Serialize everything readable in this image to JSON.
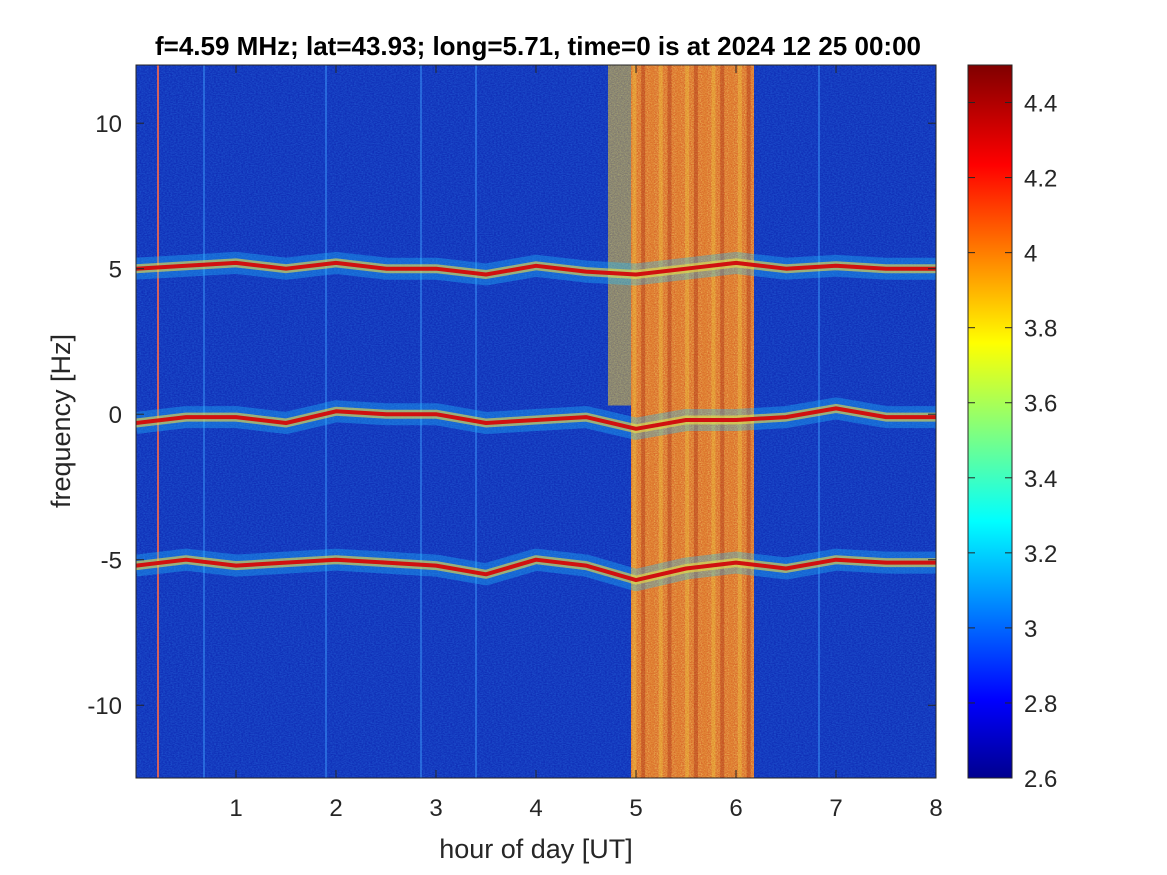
{
  "chart_data": {
    "type": "heatmap",
    "title": "f=4.59 MHz;  lat=43.93; long=5.71, time=0 is at 2024 12 25 00:00",
    "xlabel": "hour of day [UT]",
    "ylabel": "frequency [Hz]",
    "xlim": [
      0,
      8
    ],
    "ylim": [
      -12.5,
      12
    ],
    "x_ticks": [
      1,
      2,
      3,
      4,
      5,
      6,
      7,
      8
    ],
    "x_tick_labels": [
      "1",
      "2",
      "3",
      "4",
      "5",
      "6",
      "7",
      "8"
    ],
    "y_ticks": [
      10,
      5,
      0,
      -5,
      -10
    ],
    "y_tick_labels": [
      "10",
      "5",
      "0",
      "-5",
      "-10"
    ],
    "colorbar": {
      "colormap": "jet",
      "clim": [
        2.6,
        4.5
      ],
      "ticks": [
        4.4,
        4.2,
        4,
        3.8,
        3.6,
        3.4,
        3.2,
        3,
        2.8,
        2.6
      ],
      "tick_labels": [
        "4.4",
        "4.2",
        "4",
        "3.8",
        "3.6",
        "3.4",
        "3.2",
        "3",
        "2.8",
        "2.6"
      ]
    },
    "traces": [
      {
        "name": "upper",
        "x": [
          0,
          0.5,
          1,
          1.5,
          2,
          2.5,
          3,
          3.5,
          4,
          4.5,
          5,
          5.5,
          6,
          6.5,
          7,
          7.5,
          8
        ],
        "y": [
          5.0,
          5.1,
          5.2,
          5.0,
          5.2,
          5.0,
          5.0,
          4.8,
          5.1,
          4.9,
          4.8,
          5.0,
          5.2,
          5.0,
          5.1,
          5.0,
          5.0
        ]
      },
      {
        "name": "center",
        "x": [
          0,
          0.5,
          1,
          1.5,
          2,
          2.5,
          3,
          3.5,
          4,
          4.5,
          5,
          5.5,
          6,
          6.5,
          7,
          7.5,
          8
        ],
        "y": [
          -0.3,
          -0.1,
          -0.1,
          -0.3,
          0.1,
          0.0,
          0.0,
          -0.3,
          -0.2,
          -0.1,
          -0.5,
          -0.2,
          -0.2,
          -0.1,
          0.2,
          -0.1,
          -0.1
        ]
      },
      {
        "name": "lower",
        "x": [
          0,
          0.5,
          1,
          1.5,
          2,
          2.5,
          3,
          3.5,
          4,
          4.5,
          5,
          5.5,
          6,
          6.5,
          7,
          7.5,
          8
        ],
        "y": [
          -5.2,
          -5.0,
          -5.2,
          -5.1,
          -5.0,
          -5.1,
          -5.2,
          -5.5,
          -5.0,
          -5.2,
          -5.7,
          -5.3,
          -5.1,
          -5.3,
          -5.0,
          -5.1,
          -5.1
        ]
      }
    ],
    "high_power_band": {
      "x_start": 4.95,
      "x_end": 6.18,
      "level": 4.0
    },
    "step_region": {
      "x_start": 4.72,
      "x_end": 4.95,
      "y_start": 0.3,
      "y_end": 12
    }
  }
}
